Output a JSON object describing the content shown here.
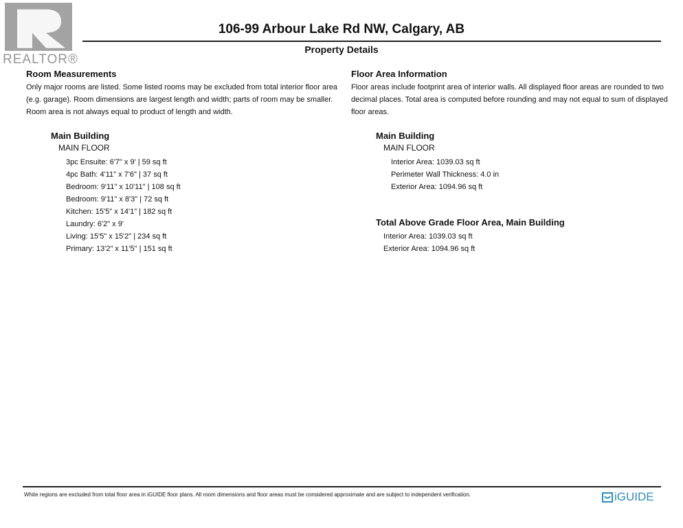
{
  "header": {
    "title": "106-99 Arbour Lake Rd NW, Calgary, AB",
    "subtitle": "Property Details"
  },
  "watermark": {
    "text": "REALTOR®"
  },
  "left": {
    "heading": "Room Measurements",
    "intro": [
      "Only major rooms are listed. Some listed rooms may be excluded from total interior floor area",
      "(e.g. garage). Room dimensions are largest length and width; parts of room may be smaller.",
      "Room area is not always equal to product of length and width."
    ],
    "building": "Main Building",
    "floor": "MAIN FLOOR",
    "rooms": [
      "3pc Ensuite: 6'7\" x 9' | 59 sq ft",
      "4pc Bath: 4'11\" x 7'6\" | 37 sq ft",
      "Bedroom: 9'11\" x 10'11\" | 108 sq ft",
      "Bedroom: 9'11\" x 8'3\" | 72 sq ft",
      "Kitchen: 15'5\" x 14'1\" | 182 sq ft",
      "Laundry: 6'2\" x 9'",
      "Living: 15'5\" x 15'2\" | 234 sq ft",
      "Primary: 13'2\" x 11'5\" | 151 sq ft"
    ]
  },
  "right": {
    "heading": "Floor Area Information",
    "intro": [
      "Floor areas include footprint area of interior walls. All displayed floor areas are rounded to two",
      "decimal places. Total area is computed before rounding and may not equal to sum of displayed",
      "floor areas."
    ],
    "building": "Main Building",
    "floor": "MAIN FLOOR",
    "items": [
      "Interior Area: 1039.03 sq ft",
      "Perimeter Wall Thickness: 4.0 in",
      "Exterior Area: 1094.96 sq ft"
    ],
    "total_heading": "Total Above Grade Floor Area, Main Building",
    "total_items": [
      "Interior Area: 1039.03 sq ft",
      "Exterior Area: 1094.96 sq ft"
    ]
  },
  "footer": {
    "text": "White regions are excluded from total floor area in iGUIDE floor plans. All room dimensions and floor areas must be considered approximate and are subject to independent verification.",
    "logo": "iGUIDE",
    "logo_color": "#2e8db5"
  }
}
